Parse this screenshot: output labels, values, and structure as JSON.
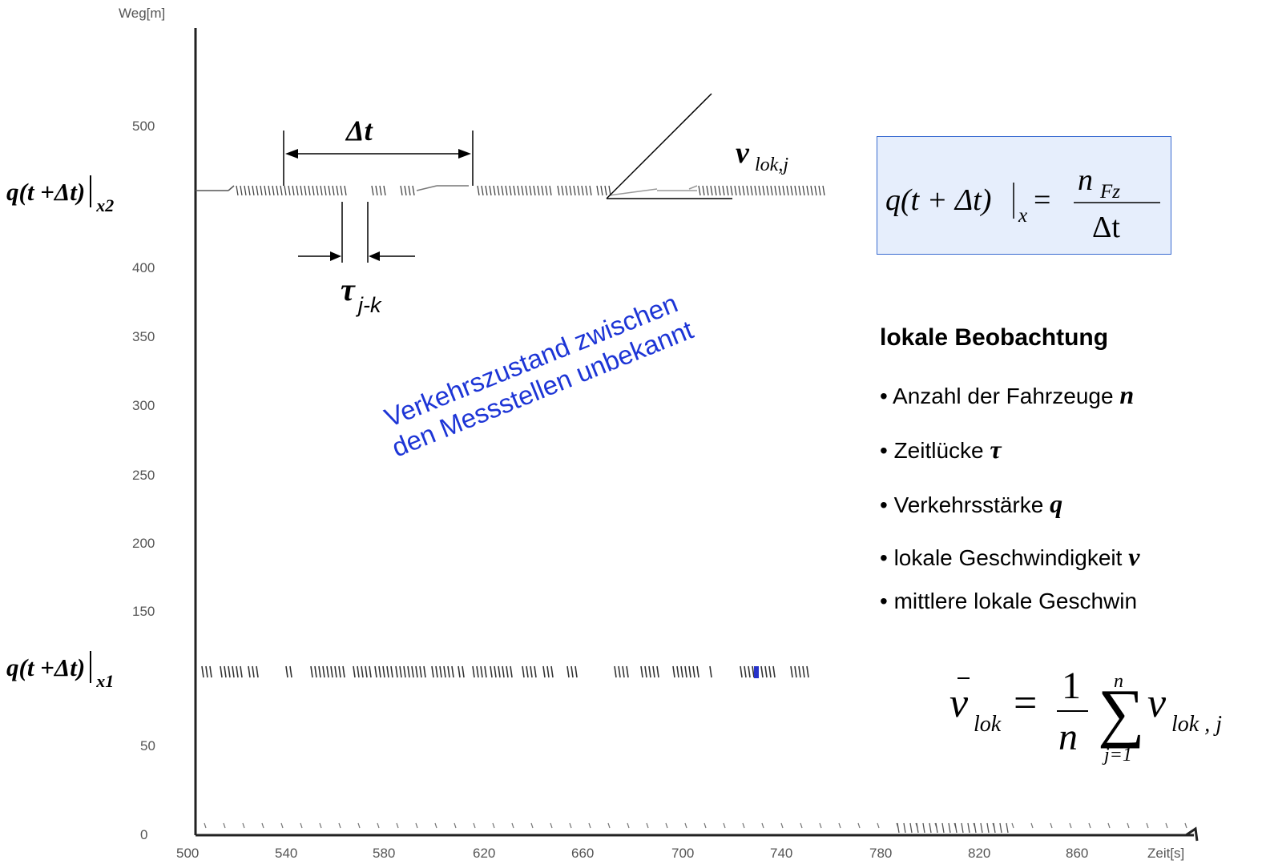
{
  "axes": {
    "y_label": "Weg[m]",
    "x_label": "Zeit[s]",
    "y_ticks": [
      "0",
      "50",
      "150",
      "200",
      "250",
      "300",
      "350",
      "400",
      "500"
    ],
    "x_ticks": [
      "500",
      "540",
      "580",
      "620",
      "660",
      "700",
      "740",
      "780",
      "820",
      "860"
    ]
  },
  "measurement_labels": {
    "upper": {
      "text": "q(t +Δt)",
      "sub": "x2"
    },
    "lower": {
      "text": "q(t +Δt)",
      "sub": "x1"
    }
  },
  "annotations": {
    "delta_t": "Δt",
    "tau": "τ",
    "tau_sub": "j-k",
    "v": "v",
    "v_sub": "lok,j",
    "rotated_line1": "Verkehrszustand zwischen",
    "rotated_line2": "den Messstellen unbekannt"
  },
  "formula": {
    "lhs": "q(t + Δt)",
    "bar_sub": "x",
    "eq": "=",
    "numerator": "n",
    "numerator_sub": "Fz",
    "denominator": "Δt"
  },
  "legend": {
    "title": "lokale Beobachtung",
    "items": [
      {
        "text": "• Anzahl der Fahrzeuge ",
        "sym": "n"
      },
      {
        "text": "• Zeitlücke ",
        "sym": "τ"
      },
      {
        "text": "• Verkehrsstärke ",
        "sym": "q"
      },
      {
        "text": "• lokale Geschwindigkeit ",
        "sym": "v"
      },
      {
        "text": "• mittlere lokale Geschwin",
        "sym": ""
      }
    ]
  },
  "mean_formula": {
    "v": "v",
    "v_sub": "lok",
    "eq": "=",
    "one": "1",
    "n_den": "n",
    "sum": "∑",
    "sum_top": "n",
    "sum_bottom": "j=1",
    "term": "v",
    "term_sub": "lok , j"
  },
  "colors": {
    "accent_text": "#1d35d6",
    "box_fill": "#e6eefc",
    "box_border": "#3a6bd0"
  }
}
